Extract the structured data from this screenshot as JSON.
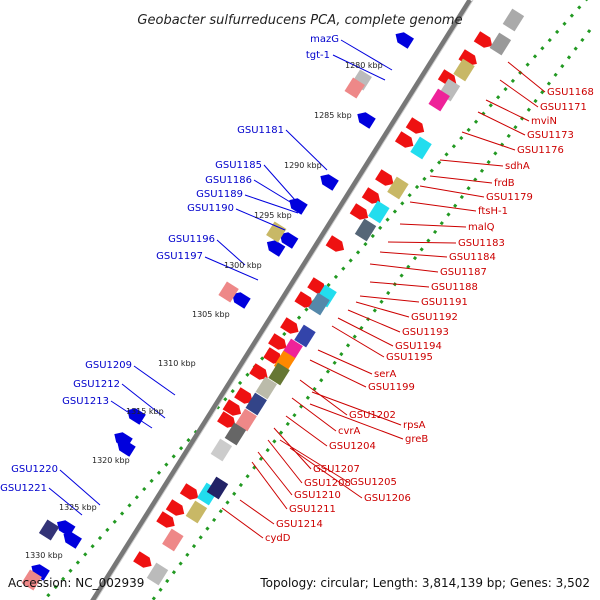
{
  "title": "Geobacter sulfurreducens PCA, complete genome",
  "footer": {
    "accession": "Accession: NC_002939",
    "topology": "Topology: circular; Length: 3,814,139 bp; Genes: 3,502"
  },
  "ticks": [
    "1280 kbp",
    "1285 kbp",
    "1290 kbp",
    "1295 kbp",
    "1300 kbp",
    "1305 kbp",
    "1310 kbp",
    "1315 kbp",
    "1320 kbp",
    "1325 kbp",
    "1330 kbp"
  ],
  "left_labels": [
    "mazG",
    "tgt-1",
    "GSU1181",
    "GSU1185",
    "GSU1186",
    "GSU1189",
    "GSU1190",
    "GSU1196",
    "GSU1197",
    "GSU1209",
    "GSU1212",
    "GSU1213",
    "GSU1220",
    "GSU1221"
  ],
  "right_labels": [
    "GSU1168",
    "GSU1171",
    "mviN",
    "GSU1173",
    "GSU1176",
    "sdhA",
    "frdB",
    "GSU1179",
    "ftsH-1",
    "malQ",
    "GSU1183",
    "GSU1184",
    "GSU1187",
    "GSU1188",
    "GSU1191",
    "GSU1192",
    "GSU1193",
    "GSU1194",
    "GSU1195",
    "serA",
    "GSU1199",
    "GSU1202",
    "rpsA",
    "cvrA",
    "greB",
    "GSU1204",
    "GSU1207",
    "GSU1205",
    "GSU1208",
    "GSU1206",
    "GSU1210",
    "GSU1211",
    "GSU1214",
    "cydD"
  ],
  "colors": {
    "plus_strand": "#0000dd",
    "minus_strand": "#ee0000",
    "backbone": "#888888",
    "tick_dots": "#229922"
  }
}
